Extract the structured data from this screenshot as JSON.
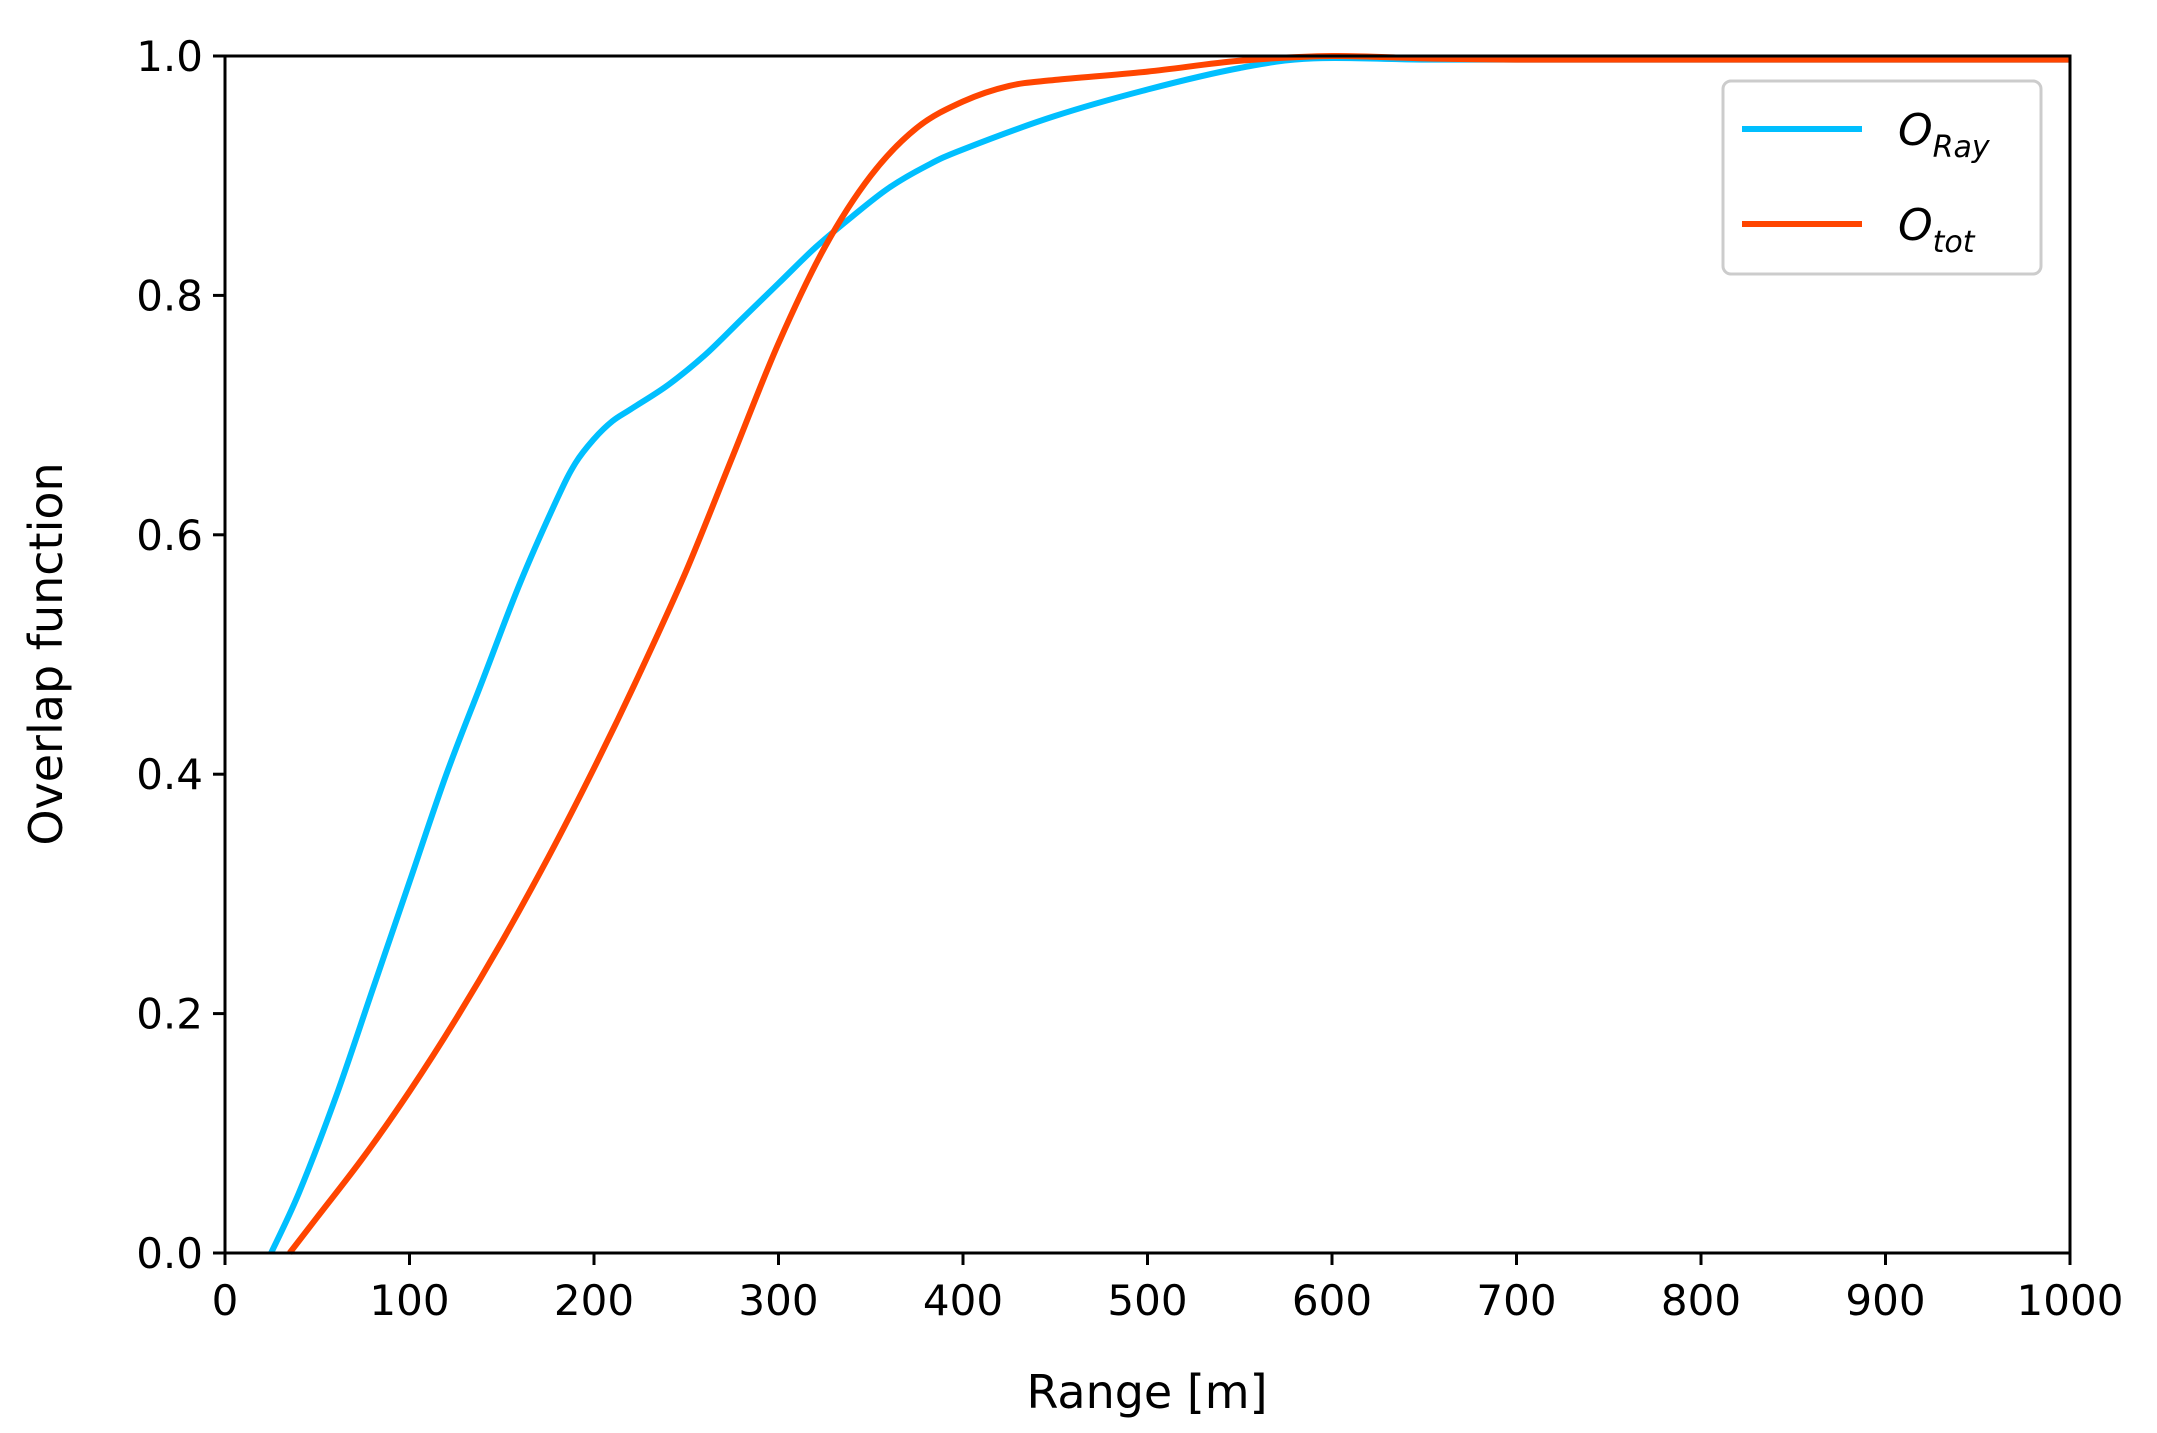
{
  "chart_data": {
    "type": "line",
    "title": "",
    "xlabel": "Range [m]",
    "ylabel": "Overlap function",
    "xlim": [
      0,
      1000
    ],
    "ylim": [
      0,
      1.0
    ],
    "xticks": [
      0,
      100,
      200,
      300,
      400,
      500,
      600,
      700,
      800,
      900,
      1000
    ],
    "yticks": [
      0.0,
      0.2,
      0.4,
      0.6,
      0.8,
      1.0
    ],
    "xtick_labels": [
      "0",
      "100",
      "200",
      "300",
      "400",
      "500",
      "600",
      "700",
      "800",
      "900",
      "1000"
    ],
    "ytick_labels": [
      "0.0",
      "0.2",
      "0.4",
      "0.6",
      "0.8",
      "1.0"
    ],
    "grid": false,
    "legend_position": "top-right",
    "series": [
      {
        "name": "O_Ray",
        "legend_main": "O",
        "legend_sub": "Ray",
        "color": "#00BFFF",
        "x": [
          25,
          40,
          60,
          80,
          100,
          120,
          140,
          160,
          180,
          190,
          200,
          210,
          220,
          240,
          260,
          280,
          300,
          320,
          340,
          360,
          380,
          400,
          450,
          500,
          550,
          590,
          650,
          700,
          800,
          900,
          1000
        ],
        "y": [
          0.0,
          0.05,
          0.13,
          0.22,
          0.31,
          0.4,
          0.48,
          0.56,
          0.63,
          0.66,
          0.68,
          0.695,
          0.705,
          0.725,
          0.75,
          0.78,
          0.81,
          0.84,
          0.866,
          0.89,
          0.908,
          0.922,
          0.95,
          0.972,
          0.99,
          0.998,
          0.997,
          0.997,
          0.997,
          0.997,
          0.997
        ]
      },
      {
        "name": "O_tot",
        "legend_main": "O",
        "legend_sub": "tot",
        "color": "#FF4500",
        "x": [
          35,
          50,
          75,
          100,
          125,
          150,
          175,
          200,
          225,
          250,
          275,
          300,
          325,
          350,
          375,
          400,
          425,
          450,
          500,
          550,
          600,
          650,
          700,
          800,
          900,
          1000
        ],
        "y": [
          0.0,
          0.03,
          0.08,
          0.135,
          0.195,
          0.26,
          0.33,
          0.405,
          0.485,
          0.57,
          0.665,
          0.76,
          0.84,
          0.9,
          0.94,
          0.962,
          0.975,
          0.98,
          0.987,
          0.996,
          1.0,
          0.998,
          0.997,
          0.997,
          0.997,
          0.997
        ]
      }
    ]
  }
}
